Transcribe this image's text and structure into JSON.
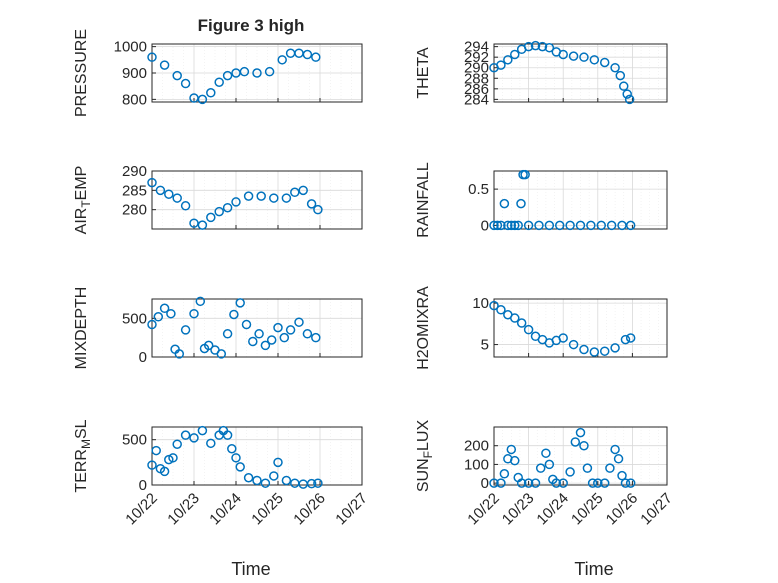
{
  "figure": {
    "title": "Figure 3 high",
    "marker_color": "#0072BD",
    "grid": true,
    "x_axis_label": "Time",
    "x_tick_labels": [
      "10/22",
      "10/23",
      "10/24",
      "10/25",
      "10/26",
      "10/27"
    ]
  },
  "chart_data": [
    {
      "type": "scatter",
      "ylabel": "PRESSURE",
      "title": "Figure 3 high",
      "xlabel": "",
      "xlim": [
        0,
        5
      ],
      "ylim": [
        790,
        1010
      ],
      "yticks": [
        800,
        900,
        1000
      ],
      "x": [
        0,
        0.3,
        0.6,
        0.8,
        1.0,
        1.2,
        1.4,
        1.6,
        1.8,
        2.0,
        2.2,
        2.5,
        2.8,
        3.1,
        3.3,
        3.5,
        3.7,
        3.9
      ],
      "y": [
        960,
        930,
        890,
        860,
        805,
        800,
        825,
        865,
        890,
        900,
        905,
        900,
        905,
        950,
        975,
        975,
        970,
        960
      ]
    },
    {
      "type": "scatter",
      "ylabel": "THETA",
      "xlabel": "",
      "xlim": [
        0,
        5
      ],
      "ylim": [
        283.5,
        294.5
      ],
      "yticks": [
        284,
        286,
        288,
        290,
        292,
        294
      ],
      "x": [
        0,
        0.2,
        0.4,
        0.6,
        0.8,
        1.0,
        1.2,
        1.4,
        1.6,
        1.8,
        2.0,
        2.3,
        2.6,
        2.9,
        3.2,
        3.5,
        3.65,
        3.75,
        3.85,
        3.92
      ],
      "y": [
        290,
        290.5,
        291.5,
        292.5,
        293.5,
        294,
        294.2,
        294,
        293.8,
        293,
        292.5,
        292.2,
        292,
        291.5,
        291,
        290,
        288.5,
        286.5,
        285,
        284
      ]
    },
    {
      "type": "scatter",
      "ylabel": "AIR_TEMP",
      "xlabel": "",
      "xlim": [
        0,
        5
      ],
      "ylim": [
        275,
        290
      ],
      "yticks": [
        280,
        285,
        290
      ],
      "x": [
        0,
        0.2,
        0.4,
        0.6,
        0.8,
        1.0,
        1.2,
        1.4,
        1.6,
        1.8,
        2.0,
        2.3,
        2.6,
        2.9,
        3.2,
        3.4,
        3.6,
        3.8,
        3.95
      ],
      "y": [
        287,
        285,
        284,
        283,
        281,
        276.5,
        276,
        278,
        279.5,
        280.5,
        282,
        283.5,
        283.5,
        283,
        283,
        284.5,
        285,
        281.5,
        280
      ]
    },
    {
      "type": "scatter",
      "ylabel": "RAINFALL",
      "xlabel": "",
      "xlim": [
        0,
        5
      ],
      "ylim": [
        -0.05,
        0.75
      ],
      "yticks": [
        0,
        0.5
      ],
      "x": [
        0,
        0.1,
        0.2,
        0.3,
        0.4,
        0.5,
        0.6,
        0.7,
        0.78,
        0.84,
        0.9,
        1.0,
        1.3,
        1.6,
        1.9,
        2.2,
        2.5,
        2.8,
        3.1,
        3.4,
        3.7,
        3.95
      ],
      "y": [
        0,
        0,
        0,
        0.3,
        0,
        0,
        0,
        0,
        0.3,
        0.7,
        0.7,
        0,
        0,
        0,
        0,
        0,
        0,
        0,
        0,
        0,
        0,
        0
      ]
    },
    {
      "type": "scatter",
      "ylabel": "MIXDEPTH",
      "xlabel": "",
      "xlim": [
        0,
        5
      ],
      "ylim": [
        0,
        750
      ],
      "yticks": [
        0,
        500
      ],
      "x": [
        0,
        0.15,
        0.3,
        0.45,
        0.55,
        0.65,
        0.8,
        1.0,
        1.15,
        1.25,
        1.35,
        1.5,
        1.65,
        1.8,
        1.95,
        2.1,
        2.25,
        2.4,
        2.55,
        2.7,
        2.85,
        3.0,
        3.15,
        3.3,
        3.5,
        3.7,
        3.9
      ],
      "y": [
        420,
        520,
        630,
        560,
        100,
        40,
        350,
        560,
        720,
        110,
        150,
        90,
        40,
        300,
        550,
        700,
        420,
        200,
        300,
        150,
        220,
        380,
        250,
        350,
        450,
        300,
        250
      ]
    },
    {
      "type": "scatter",
      "ylabel": "H2OMIXRA",
      "xlabel": "",
      "xlim": [
        0,
        5
      ],
      "ylim": [
        3.5,
        10.5
      ],
      "yticks": [
        5,
        10
      ],
      "x": [
        0,
        0.2,
        0.4,
        0.6,
        0.8,
        1.0,
        1.2,
        1.4,
        1.6,
        1.8,
        2.0,
        2.3,
        2.6,
        2.9,
        3.2,
        3.5,
        3.8,
        3.95
      ],
      "y": [
        9.7,
        9.2,
        8.6,
        8.2,
        7.6,
        6.8,
        6,
        5.6,
        5.2,
        5.5,
        5.8,
        5,
        4.4,
        4.1,
        4.2,
        4.6,
        5.6,
        5.8
      ]
    },
    {
      "type": "scatter",
      "ylabel": "TERR_MSL",
      "xlabel": "",
      "xlim": [
        0,
        5
      ],
      "ylim": [
        0,
        640
      ],
      "yticks": [
        0,
        500
      ],
      "x": [
        0,
        0.1,
        0.2,
        0.3,
        0.4,
        0.5,
        0.6,
        0.8,
        1.0,
        1.2,
        1.4,
        1.6,
        1.7,
        1.8,
        1.9,
        2.0,
        2.1,
        2.3,
        2.5,
        2.7,
        2.9,
        3.0,
        3.2,
        3.4,
        3.6,
        3.8,
        3.95
      ],
      "y": [
        220,
        380,
        180,
        150,
        280,
        300,
        450,
        550,
        520,
        600,
        460,
        550,
        600,
        550,
        400,
        300,
        200,
        80,
        50,
        20,
        100,
        250,
        50,
        20,
        10,
        15,
        20
      ]
    },
    {
      "type": "scatter",
      "ylabel": "SUN_FLUX",
      "xlabel": "",
      "xlim": [
        0,
        5
      ],
      "ylim": [
        -10,
        300
      ],
      "yticks": [
        0,
        100,
        200
      ],
      "x": [
        0,
        0.2,
        0.3,
        0.4,
        0.5,
        0.6,
        0.7,
        0.8,
        1.0,
        1.2,
        1.35,
        1.5,
        1.6,
        1.7,
        1.8,
        2.0,
        2.2,
        2.35,
        2.5,
        2.6,
        2.7,
        2.85,
        3.0,
        3.2,
        3.35,
        3.5,
        3.6,
        3.7,
        3.8,
        3.95
      ],
      "y": [
        0,
        0,
        50,
        130,
        180,
        120,
        30,
        0,
        0,
        0,
        80,
        160,
        100,
        20,
        0,
        0,
        60,
        220,
        270,
        200,
        80,
        0,
        0,
        0,
        80,
        180,
        130,
        40,
        0,
        0
      ]
    }
  ]
}
